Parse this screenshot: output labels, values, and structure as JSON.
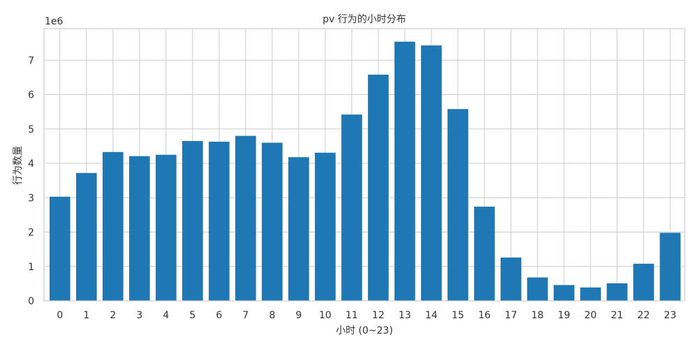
{
  "chart_data": {
    "type": "bar",
    "title": "pv 行为的小时分布",
    "xlabel": "小时 (0~23)",
    "ylabel": "行为数量",
    "y_scale_label": "1e6",
    "categories": [
      "0",
      "1",
      "2",
      "3",
      "4",
      "5",
      "6",
      "7",
      "8",
      "9",
      "10",
      "11",
      "12",
      "13",
      "14",
      "15",
      "16",
      "17",
      "18",
      "19",
      "20",
      "21",
      "22",
      "23"
    ],
    "values": [
      3.03,
      3.72,
      4.33,
      4.21,
      4.25,
      4.65,
      4.63,
      4.8,
      4.6,
      4.18,
      4.31,
      5.42,
      6.58,
      7.54,
      7.43,
      5.58,
      2.74,
      1.26,
      0.68,
      0.46,
      0.39,
      0.51,
      1.08,
      1.98
    ],
    "value_multiplier": 1000000,
    "yticks": [
      0,
      1,
      2,
      3,
      4,
      5,
      6,
      7
    ],
    "ylim": [
      0,
      7.92
    ],
    "grid": true,
    "colors": {
      "bar": "#1f77b4",
      "grid": "#cccccc",
      "frame": "#cccccc",
      "text": "#333333"
    }
  }
}
